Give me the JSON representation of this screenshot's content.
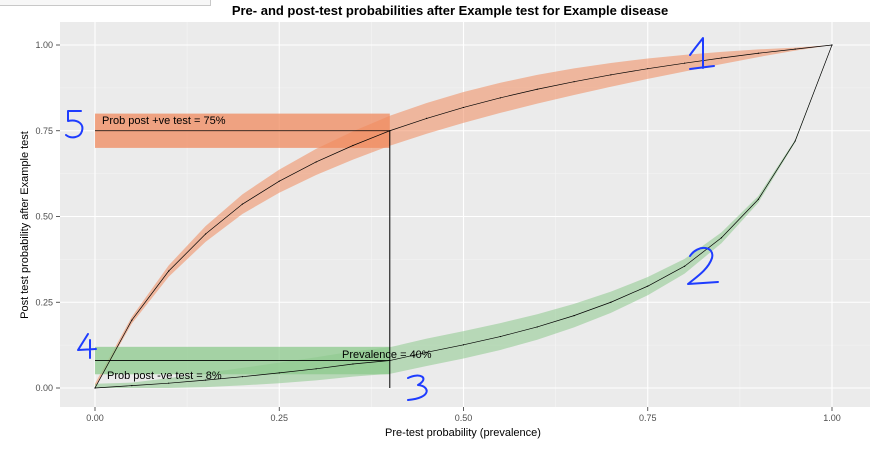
{
  "chart_data": {
    "type": "line",
    "title": "Pre- and post-test probabilities after Example test for Example disease",
    "xlabel": "Pre-test probability (prevalence)",
    "ylabel": "Post test probability after Example test",
    "xlim": [
      0,
      1
    ],
    "ylim": [
      0,
      1
    ],
    "x_ticks": [
      "0.00",
      "0.25",
      "0.50",
      "0.75",
      "1.00"
    ],
    "y_ticks": [
      "0.00",
      "0.25",
      "0.50",
      "0.75",
      "1.00"
    ],
    "grid": true,
    "background": "#ebebeb",
    "prevalence": 0.4,
    "series": [
      {
        "color": "#f08a5d",
        "x": [
          0,
          0.05,
          0.1,
          0.15,
          0.2,
          0.25,
          0.3,
          0.35,
          0.4,
          0.45,
          0.5,
          0.55,
          0.6,
          0.65,
          0.7,
          0.75,
          0.8,
          0.85,
          0.9,
          0.95,
          1.0
        ],
        "y": [
          0,
          0.198,
          0.341,
          0.449,
          0.536,
          0.603,
          0.659,
          0.707,
          0.75,
          0.786,
          0.818,
          0.846,
          0.871,
          0.893,
          0.913,
          0.931,
          0.947,
          0.962,
          0.976,
          0.988,
          1.0
        ],
        "band_halfwidth": 0.045
      },
      {
        "color": "#8cc98c",
        "x": [
          0,
          0.05,
          0.1,
          0.15,
          0.2,
          0.25,
          0.3,
          0.35,
          0.4,
          0.45,
          0.5,
          0.55,
          0.6,
          0.65,
          0.7,
          0.75,
          0.8,
          0.85,
          0.9,
          0.95,
          1.0
        ],
        "y": [
          0,
          0.007,
          0.014,
          0.023,
          0.033,
          0.044,
          0.056,
          0.07,
          0.08,
          0.104,
          0.126,
          0.15,
          0.178,
          0.211,
          0.25,
          0.297,
          0.355,
          0.438,
          0.55,
          0.72,
          1.0
        ],
        "band_halfwidth": 0.04
      }
    ],
    "annotations": {
      "prob_pos": {
        "text": "Prob post +ve test = 75%",
        "x": 0,
        "y": 0.75,
        "xend": 0.4,
        "band_low": 0.7,
        "band_high": 0.8
      },
      "prob_neg": {
        "text": "Prob post -ve test = 8%",
        "x": 0,
        "y": 0.08,
        "xend": 0.4,
        "band_low": 0.04,
        "band_high": 0.12
      },
      "prevalence": {
        "text": "Prevalence = 40%",
        "x": 0.4,
        "y_from": 0,
        "y_to": 0.75
      }
    },
    "handwritten_marks": [
      "1",
      "2",
      "3",
      "4",
      "5"
    ]
  }
}
